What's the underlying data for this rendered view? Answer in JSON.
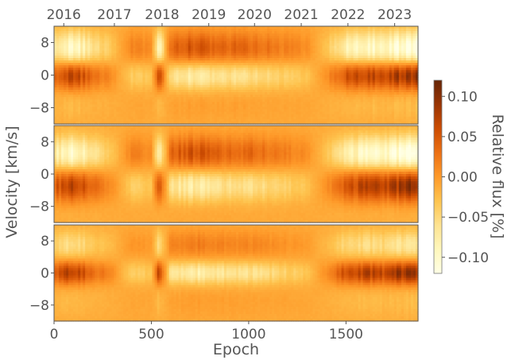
{
  "chart_data": {
    "type": "heatmap",
    "panels": [
      {
        "ylim": [
          -12,
          12
        ],
        "yticks": [
          8,
          0,
          -8
        ],
        "ytick_labels": [
          "8",
          "0",
          "−8"
        ],
        "features": [
          {
            "center": 0,
            "width": 2.5,
            "sign": 1
          },
          {
            "center": 6.5,
            "width": 3,
            "sign": -1
          }
        ]
      },
      {
        "ylim": [
          -12,
          12
        ],
        "yticks": [
          8,
          0,
          -8
        ],
        "ytick_labels": [
          "8",
          "0",
          "−8"
        ],
        "features": [
          {
            "center": -3,
            "width": 3,
            "sign": 1
          },
          {
            "center": 5,
            "width": 3,
            "sign": -1
          }
        ]
      },
      {
        "ylim": [
          -12,
          12
        ],
        "yticks": [
          8,
          0,
          -8
        ],
        "ytick_labels": [
          "8",
          "0",
          "−8"
        ],
        "features": [
          {
            "center": 0,
            "width": 2,
            "sign": 1
          },
          {
            "center": 7,
            "width": 2.5,
            "sign": -0.5
          }
        ]
      }
    ],
    "epoch_amplitude": [
      [
        0,
        0.06
      ],
      [
        100,
        0.09
      ],
      [
        200,
        0.05
      ],
      [
        300,
        0.02
      ],
      [
        400,
        -0.03
      ],
      [
        500,
        -0.02
      ],
      [
        540,
        0.08
      ],
      [
        600,
        -0.05
      ],
      [
        700,
        -0.07
      ],
      [
        800,
        -0.06
      ],
      [
        900,
        -0.05
      ],
      [
        1000,
        -0.05
      ],
      [
        1100,
        -0.04
      ],
      [
        1200,
        -0.03
      ],
      [
        1300,
        -0.02
      ],
      [
        1400,
        0.02
      ],
      [
        1500,
        0.07
      ],
      [
        1600,
        0.09
      ],
      [
        1700,
        0.08
      ],
      [
        1800,
        0.11
      ],
      [
        1870,
        0.11
      ]
    ],
    "xlabel": "Epoch",
    "ylabel": "Velocity [km/s]",
    "xlim": [
      0,
      1870
    ],
    "xticks": [
      0,
      500,
      1000,
      1500
    ],
    "top_axis": {
      "ticks": [
        {
          "label": "2016",
          "epoch": 50
        },
        {
          "label": "2017",
          "epoch": 310
        },
        {
          "label": "2018",
          "epoch": 555
        },
        {
          "label": "2019",
          "epoch": 795
        },
        {
          "label": "2020",
          "epoch": 1030
        },
        {
          "label": "2021",
          "epoch": 1270
        },
        {
          "label": "2022",
          "epoch": 1510
        },
        {
          "label": "2023",
          "epoch": 1750
        }
      ]
    },
    "colorbar": {
      "label": "Relative flux [%]",
      "range": [
        -0.12,
        0.12
      ],
      "ticks": [
        0.1,
        0.05,
        0.0,
        -0.05,
        -0.1
      ],
      "tick_labels": [
        "0.10",
        "0.05",
        "0.00",
        "−0.05",
        "−0.10"
      ],
      "colormap": "YlOrBr",
      "colors": [
        "#ffffe5",
        "#fff7bc",
        "#fee391",
        "#fec44f",
        "#fe9929",
        "#ec7014",
        "#cc4c02",
        "#993404",
        "#662506"
      ]
    },
    "grid": false
  }
}
